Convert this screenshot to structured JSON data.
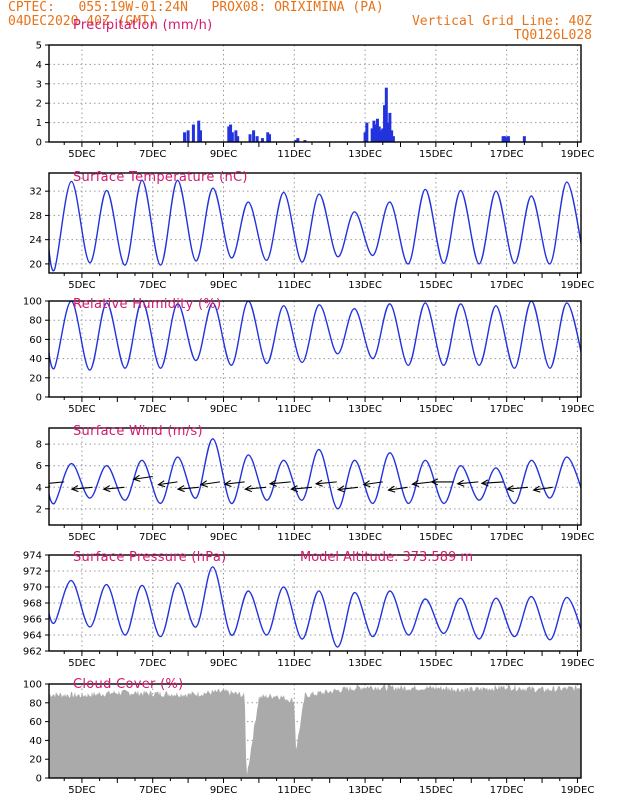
{
  "header": {
    "line1_left": "CPTEC:   055:19W-01:24N   PROX08: ORIXIMINA (PA)",
    "line2_left": "04DEC2020 40Z (GMT)",
    "line2_right": "Vertical Grid Line: 40Z",
    "line3_right": "TQ0126L028"
  },
  "colors": {
    "header": "#e8731a",
    "title": "#d4186e",
    "series": "#2233dd",
    "bars": "#2233dd",
    "cloud": "#aaaaaa",
    "grid": "#999999"
  },
  "chart_data": [
    {
      "type": "bar",
      "title": "Precipitation (mm/h)",
      "xlabel": "",
      "ylabel": "",
      "xticks": [
        "5DEC",
        "7DEC",
        "9DEC",
        "11DEC",
        "13DEC",
        "15DEC",
        "17DEC",
        "19DEC"
      ],
      "yticks": [
        "0",
        "1",
        "2",
        "3",
        "4",
        "5"
      ],
      "ylim": [
        0,
        5
      ],
      "xlim_days": [
        4.07,
        19.1
      ],
      "x": [
        7.9,
        8.0,
        8.15,
        8.3,
        8.35,
        9.15,
        9.2,
        9.25,
        9.35,
        9.4,
        9.75,
        9.85,
        9.95,
        10.1,
        10.25,
        10.3,
        11.05,
        11.1,
        11.3,
        13.0,
        13.05,
        13.2,
        13.25,
        13.3,
        13.35,
        13.4,
        13.45,
        13.5,
        13.55,
        13.6,
        13.65,
        13.7,
        13.75,
        13.8,
        16.9,
        16.95,
        17.0,
        17.05,
        17.5
      ],
      "values": [
        0.5,
        0.6,
        0.9,
        1.1,
        0.6,
        0.8,
        0.9,
        0.5,
        0.6,
        0.3,
        0.4,
        0.6,
        0.3,
        0.2,
        0.5,
        0.4,
        0.1,
        0.2,
        0.1,
        0.5,
        1.0,
        0.7,
        1.1,
        0.9,
        1.2,
        0.8,
        0.6,
        0.7,
        1.9,
        2.8,
        1.0,
        1.5,
        0.6,
        0.3,
        0.3,
        0.3,
        0.25,
        0.3,
        0.3
      ]
    },
    {
      "type": "line",
      "title": "Surface Temperature (nC)",
      "xlabel": "",
      "ylabel": "",
      "xticks": [
        "5DEC",
        "7DEC",
        "9DEC",
        "11DEC",
        "13DEC",
        "15DEC",
        "17DEC",
        "19DEC"
      ],
      "yticks": [
        "20",
        "24",
        "28",
        "32"
      ],
      "ylim": [
        18.5,
        35
      ],
      "xlim_days": [
        4.07,
        19.1
      ],
      "maxima": [
        33.6,
        32.1,
        33.8,
        33.8,
        32.5,
        30.2,
        31.8,
        31.5,
        28.6,
        30.2,
        32.3,
        32.1,
        32.0,
        31.2,
        33.5
      ],
      "minima": [
        19.0,
        20.2,
        19.8,
        19.8,
        20.5,
        21.0,
        20.6,
        20.3,
        21.2,
        21.4,
        20.0,
        20.1,
        20.0,
        20.1,
        20.0
      ]
    },
    {
      "type": "line",
      "title": "Relative Humidity (%)",
      "xlabel": "",
      "ylabel": "",
      "xticks": [
        "5DEC",
        "7DEC",
        "9DEC",
        "11DEC",
        "13DEC",
        "15DEC",
        "17DEC",
        "19DEC"
      ],
      "yticks": [
        "0",
        "20",
        "40",
        "60",
        "80",
        "100"
      ],
      "ylim": [
        0,
        100
      ],
      "xlim_days": [
        4.07,
        19.1
      ],
      "maxima": [
        100,
        98,
        100,
        97,
        98,
        100,
        95,
        96,
        92,
        97,
        98,
        97,
        95,
        100,
        98
      ],
      "minima": [
        30,
        28,
        30,
        30,
        38,
        33,
        35,
        36,
        45,
        40,
        33,
        33,
        33,
        30,
        30
      ]
    },
    {
      "type": "line",
      "title": "Surface Wind (m/s)",
      "xlabel": "",
      "ylabel": "",
      "xticks": [
        "5DEC",
        "7DEC",
        "9DEC",
        "11DEC",
        "13DEC",
        "15DEC",
        "17DEC",
        "19DEC"
      ],
      "yticks": [
        "2",
        "4",
        "6",
        "8"
      ],
      "ylim": [
        0.5,
        9.5
      ],
      "xlim_days": [
        4.07,
        19.1
      ],
      "maxima": [
        6.2,
        6.0,
        6.5,
        6.8,
        8.5,
        7.0,
        6.5,
        7.5,
        6.5,
        7.2,
        6.5,
        6.0,
        5.8,
        6.5,
        6.8
      ],
      "minima": [
        2.5,
        3.0,
        2.8,
        2.5,
        3.0,
        2.5,
        2.8,
        2.8,
        2.0,
        2.5,
        2.5,
        2.5,
        2.8,
        2.5,
        3.0
      ],
      "barb_days": [
        4.5,
        5.3,
        6.2,
        7.0,
        7.7,
        8.3,
        8.9,
        9.6,
        10.2,
        10.9,
        11.5,
        12.2,
        12.8,
        13.5,
        14.2,
        14.9,
        15.5,
        16.2,
        16.9,
        17.6,
        18.3
      ],
      "barb_speeds": [
        4.5,
        4.0,
        4.0,
        5.0,
        4.5,
        4.0,
        4.5,
        4.5,
        4.0,
        4.5,
        4.0,
        4.5,
        4.0,
        4.5,
        4.0,
        4.5,
        4.5,
        4.5,
        4.5,
        4.0,
        4.0
      ],
      "barb_dir_from_deg": [
        70,
        70,
        70,
        60,
        60,
        70,
        60,
        65,
        70,
        70,
        70,
        70,
        65,
        60,
        60,
        65,
        90,
        70,
        75,
        70,
        60
      ]
    },
    {
      "type": "line",
      "title": "Surface Pressure (hPa)",
      "annotation": "Model Altitude: 373.589 m",
      "xlabel": "",
      "ylabel": "",
      "xticks": [
        "5DEC",
        "7DEC",
        "9DEC",
        "11DEC",
        "13DEC",
        "15DEC",
        "17DEC",
        "19DEC"
      ],
      "yticks": [
        "962",
        "964",
        "966",
        "968",
        "970",
        "972",
        "974"
      ],
      "ylim": [
        962,
        974
      ],
      "xlim_days": [
        4.07,
        19.1
      ],
      "maxima": [
        970.8,
        970.3,
        970.2,
        970.5,
        972.5,
        969.5,
        970.0,
        969.5,
        969.3,
        969.5,
        968.5,
        968.6,
        968.6,
        968.8,
        968.7
      ],
      "minima": [
        965.5,
        965.0,
        964.0,
        963.8,
        965.0,
        964.0,
        964.0,
        963.5,
        962.5,
        963.8,
        964.0,
        964.2,
        963.5,
        963.8,
        963.4
      ]
    },
    {
      "type": "area",
      "title": "Cloud Cover (%)",
      "xlabel": "",
      "ylabel": "",
      "xticks": [
        "5DEC",
        "7DEC",
        "9DEC",
        "11DEC",
        "13DEC",
        "15DEC",
        "17DEC",
        "19DEC"
      ],
      "yticks": [
        "0",
        "20",
        "40",
        "60",
        "80",
        "100"
      ],
      "ylim": [
        0,
        100
      ],
      "xlim_days": [
        4.07,
        19.1
      ],
      "days": [
        4.1,
        5.0,
        6.0,
        7.0,
        8.0,
        9.0,
        9.6,
        9.65,
        10.0,
        10.5,
        11.0,
        11.05,
        11.3,
        12.0,
        12.5,
        13.0,
        14.0,
        15.0,
        16.0,
        17.0,
        18.0,
        19.1
      ],
      "values": [
        89,
        88,
        91,
        90,
        89,
        92,
        88,
        0,
        86,
        88,
        82,
        30,
        88,
        92,
        95,
        97,
        96,
        96,
        94,
        97,
        94,
        96
      ]
    }
  ]
}
